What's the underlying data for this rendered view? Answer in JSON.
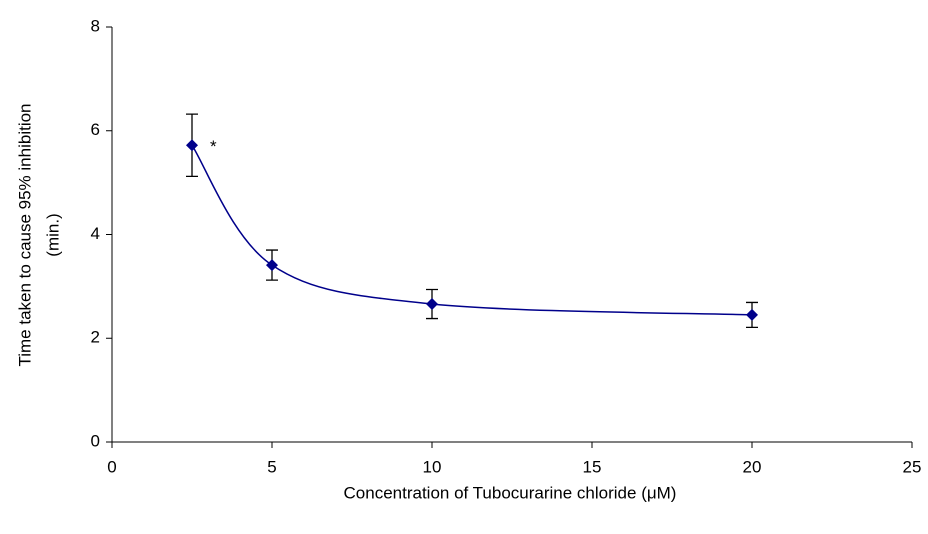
{
  "chart_data": {
    "type": "scatter",
    "x_label": "Concentration of Tubocurarine chloride (μM)",
    "y_label": [
      "Time taken to cause 95% inhibition",
      "(min.)"
    ],
    "series": [
      {
        "x": [
          2.5,
          5,
          10,
          20
        ],
        "values": [
          5.72,
          3.41,
          2.66,
          2.45
        ],
        "errors": [
          0.6,
          0.29,
          0.28,
          0.24
        ],
        "color": "#00008b"
      }
    ],
    "annotations": [
      {
        "text": "*",
        "x": 2.5,
        "y": 5.72
      }
    ],
    "xlim": [
      0,
      25
    ],
    "xticks": [
      0,
      5,
      10,
      15,
      20,
      25
    ],
    "ylim": [
      0,
      8
    ],
    "yticks": [
      0,
      2,
      4,
      6,
      8
    ],
    "smooth_line": true
  }
}
